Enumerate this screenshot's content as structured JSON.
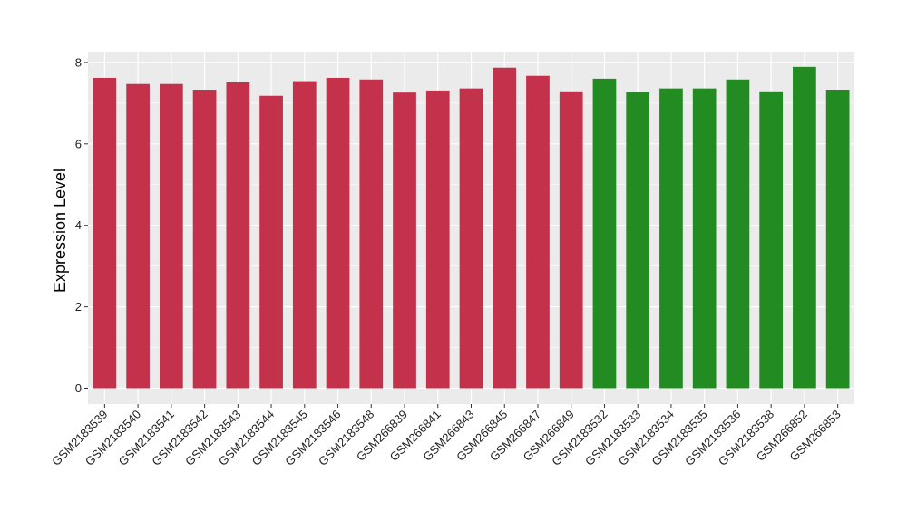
{
  "chart_data": {
    "type": "bar",
    "title": "",
    "xlabel": "",
    "ylabel": "Expression Level",
    "ylim": [
      0,
      8.3
    ],
    "yticks": [
      0,
      2,
      4,
      6,
      8
    ],
    "grid": true,
    "legend": "none",
    "categories": [
      "GSM2183539",
      "GSM2183540",
      "GSM2183541",
      "GSM2183542",
      "GSM2183543",
      "GSM2183544",
      "GSM2183545",
      "GSM2183546",
      "GSM2183548",
      "GSM266839",
      "GSM266841",
      "GSM266843",
      "GSM266845",
      "GSM266847",
      "GSM266849",
      "GSM2183532",
      "GSM2183533",
      "GSM2183534",
      "GSM2183535",
      "GSM2183536",
      "GSM2183538",
      "GSM266852",
      "GSM266853"
    ],
    "values": [
      7.62,
      7.47,
      7.47,
      7.33,
      7.51,
      7.18,
      7.54,
      7.62,
      7.58,
      7.26,
      7.31,
      7.36,
      7.87,
      7.67,
      7.29,
      7.6,
      7.27,
      7.36,
      7.36,
      7.58,
      7.29,
      7.89,
      7.33
    ],
    "groups": [
      "a",
      "a",
      "a",
      "a",
      "a",
      "a",
      "a",
      "a",
      "a",
      "a",
      "a",
      "a",
      "a",
      "a",
      "a",
      "b",
      "b",
      "b",
      "b",
      "b",
      "b",
      "b",
      "b"
    ],
    "colors": {
      "a": "#C4314B",
      "b": "#228B22"
    },
    "panel_background": "#EBEBEB",
    "grid_color": "#FFFFFF"
  }
}
